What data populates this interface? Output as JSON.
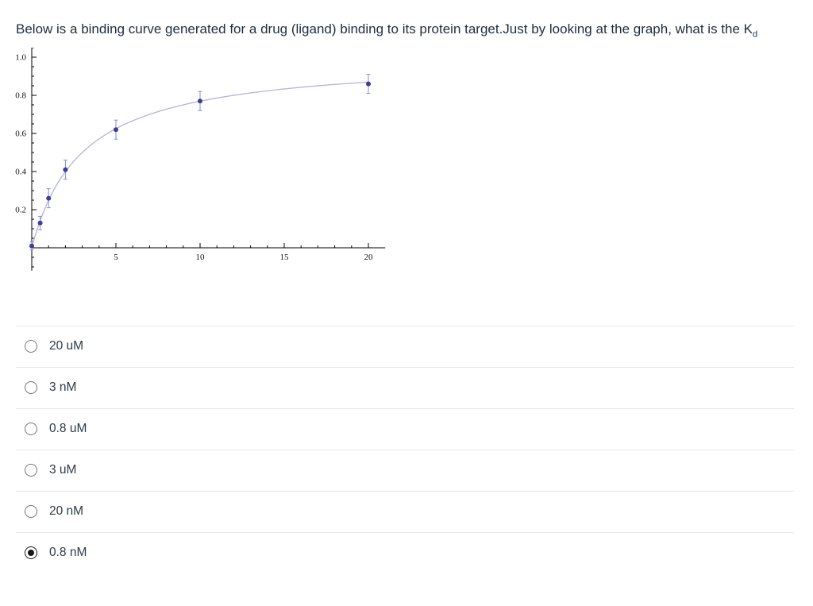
{
  "question": {
    "text": "Below is a binding curve generated for a drug (ligand) binding to its protein target.Just by looking at the graph, what is the K",
    "subscript": "d"
  },
  "options": [
    {
      "label": "20 uM",
      "selected": false
    },
    {
      "label": "3 nM",
      "selected": false
    },
    {
      "label": "0.8 uM",
      "selected": false
    },
    {
      "label": "3 uM",
      "selected": false
    },
    {
      "label": "20 nM",
      "selected": false
    },
    {
      "label": "0.8 nM",
      "selected": true
    }
  ],
  "chart_data": {
    "type": "scatter",
    "title": "",
    "xlabel": "",
    "ylabel": "",
    "xlim": [
      0,
      21
    ],
    "ylim": [
      -0.1,
      1.0
    ],
    "x_ticks": [
      5,
      10,
      15,
      20
    ],
    "y_ticks": [
      0.2,
      0.4,
      0.6,
      0.8,
      1.0
    ],
    "grid": false,
    "legend": "none",
    "points": {
      "x": [
        0,
        0.5,
        1,
        2,
        5,
        10,
        20
      ],
      "y": [
        0.01,
        0.13,
        0.26,
        0.41,
        0.62,
        0.77,
        0.86
      ],
      "yerr": [
        0.02,
        0.035,
        0.05,
        0.05,
        0.05,
        0.05,
        0.05
      ]
    },
    "fit_curve": {
      "model": "y = x / (Kd + x)",
      "Kd": 3
    },
    "colors": {
      "point": "#3d3d99",
      "error_bar": "#8c8ccc",
      "curve": "#b3b3de",
      "axis": "#000000",
      "tick_label": "#111111"
    }
  }
}
